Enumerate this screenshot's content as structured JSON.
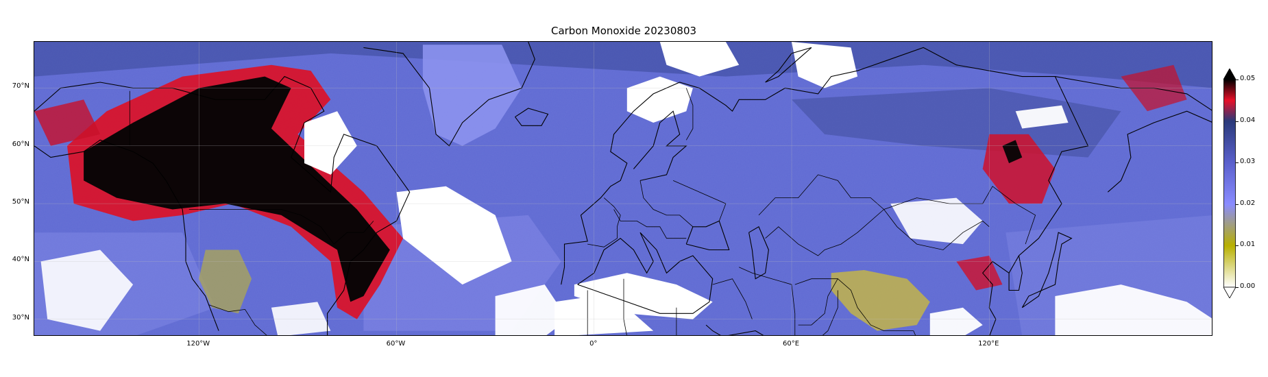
{
  "title": "Carbon Monoxide 20230803",
  "map": {
    "projection": "equirectangular",
    "lon_range": [
      -170,
      188
    ],
    "lat_range": [
      27,
      78
    ],
    "x_ticks": [
      {
        "lon": -120,
        "label": "120°W"
      },
      {
        "lon": -60,
        "label": "60°W"
      },
      {
        "lon": 0,
        "label": "0°"
      },
      {
        "lon": 60,
        "label": "60°E"
      },
      {
        "lon": 120,
        "label": "120°E"
      }
    ],
    "y_ticks": [
      {
        "lat": 70,
        "label": "70°N"
      },
      {
        "lat": 60,
        "label": "60°N"
      },
      {
        "lat": 50,
        "label": "50°N"
      },
      {
        "lat": 40,
        "label": "40°N"
      },
      {
        "lat": 30,
        "label": "30°N"
      }
    ],
    "gridlines": true,
    "no_data_color": "#ffffff",
    "base_color": "#5f6ad2"
  },
  "colorbar": {
    "orientation": "vertical",
    "placement": "right",
    "min": 0.0,
    "max": 0.05,
    "extend": "both",
    "ticks": [
      {
        "value": 0.0,
        "label": "0.00"
      },
      {
        "value": 0.01,
        "label": "0.01"
      },
      {
        "value": 0.02,
        "label": "0.02"
      },
      {
        "value": 0.03,
        "label": "0.03"
      },
      {
        "value": 0.04,
        "label": "0.04"
      },
      {
        "value": 0.05,
        "label": "0.05"
      }
    ],
    "stops": [
      {
        "value": 0.0,
        "color": "#ffffff"
      },
      {
        "value": 0.01,
        "color": "#b8b000"
      },
      {
        "value": 0.02,
        "color": "#8a8cff"
      },
      {
        "value": 0.03,
        "color": "#5a60cc"
      },
      {
        "value": 0.04,
        "color": "#2a3a7a"
      },
      {
        "value": 0.045,
        "color": "#e81028"
      },
      {
        "value": 0.05,
        "color": "#000000"
      }
    ],
    "over_color": "#000000",
    "under_color": "#ffffff"
  }
}
